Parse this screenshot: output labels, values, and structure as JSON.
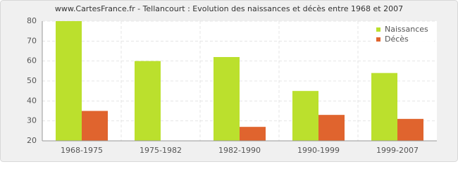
{
  "chart_data": {
    "type": "bar",
    "title": "www.CartesFrance.fr - Tellancourt : Evolution des naissances et décès entre 1968 et 2007",
    "categories": [
      "1968-1975",
      "1975-1982",
      "1982-1990",
      "1990-1999",
      "1999-2007"
    ],
    "series": [
      {
        "name": "Naissances",
        "color": "#bbe02d",
        "values": [
          80,
          60,
          62,
          45,
          54
        ]
      },
      {
        "name": "Décès",
        "color": "#e0642e",
        "values": [
          35,
          20,
          27,
          33,
          31
        ]
      }
    ],
    "ylim": [
      20,
      80
    ],
    "yticks": [
      20,
      30,
      40,
      50,
      60,
      70,
      80
    ],
    "grid": true,
    "legend": "top-right"
  }
}
